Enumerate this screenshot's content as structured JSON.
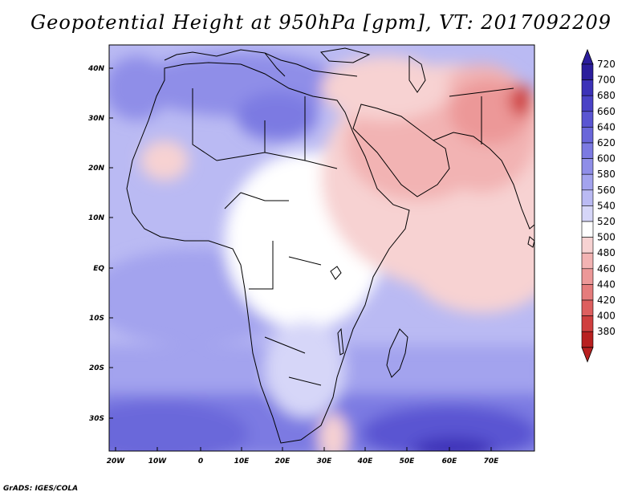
{
  "title": "Geopotential Height at 950hPa [gpm], VT: 2017092209",
  "footer": "GrADS: IGES/COLA",
  "map": {
    "lon_range": [
      -23,
      80
    ],
    "lat_range": [
      -37,
      45
    ],
    "lon_labels": [
      "20W",
      "10W",
      "0",
      "10E",
      "20E",
      "30E",
      "40E",
      "50E",
      "60E",
      "70E"
    ],
    "lat_labels": [
      "40N",
      "30N",
      "20N",
      "10N",
      "EQ",
      "10S",
      "20S",
      "30S"
    ]
  },
  "colorbar": {
    "levels": [
      "720",
      "700",
      "680",
      "660",
      "640",
      "620",
      "600",
      "580",
      "560",
      "540",
      "520",
      "500",
      "480",
      "460",
      "440",
      "420",
      "400",
      "380"
    ],
    "colors": [
      "#2b1d9c",
      "#3c32b8",
      "#4a42c6",
      "#5a55d2",
      "#6a67da",
      "#7c7ae2",
      "#8f8ee8",
      "#a3a3ee",
      "#babaf3",
      "#d6d6f8",
      "#ffffff",
      "#f7d2d2",
      "#f2b3b3",
      "#ec9898",
      "#e57c7c",
      "#dd5f5f",
      "#cf3f3f",
      "#b82020"
    ]
  }
}
